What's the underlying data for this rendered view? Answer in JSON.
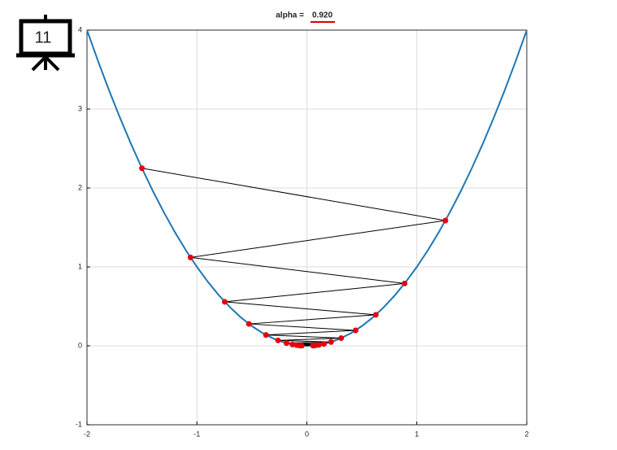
{
  "badge": "11",
  "chart_data": {
    "type": "line",
    "title": "alpha =",
    "title_value": "0.920",
    "xlim": [
      -2,
      2
    ],
    "ylim": [
      -1,
      4
    ],
    "xticks": [
      -2,
      -1,
      0,
      1,
      2
    ],
    "yticks": [
      -1,
      0,
      1,
      2,
      3,
      4
    ],
    "grid": true,
    "series": [
      {
        "color": "#1f77b4",
        "x": [
          -2,
          -1.9,
          -1.8,
          -1.7,
          -1.6,
          -1.5,
          -1.4,
          -1.3,
          -1.2,
          -1.1,
          -1,
          -0.9,
          -0.8,
          -0.7,
          -0.6,
          -0.5,
          -0.4,
          -0.3,
          -0.2,
          -0.1,
          0,
          0.1,
          0.2,
          0.3,
          0.4,
          0.5,
          0.6,
          0.7,
          0.8,
          0.9,
          1,
          1.1,
          1.2,
          1.3,
          1.4,
          1.5,
          1.6,
          1.7,
          1.8,
          1.9,
          2
        ],
        "values": [
          4,
          3.61,
          3.24,
          2.89,
          2.56,
          2.25,
          1.96,
          1.69,
          1.44,
          1.21,
          1,
          0.81,
          0.64,
          0.49,
          0.36,
          0.25,
          0.16,
          0.09,
          0.04,
          0.01,
          0,
          0.01,
          0.04,
          0.09,
          0.16,
          0.25,
          0.36,
          0.49,
          0.64,
          0.81,
          1,
          1.21,
          1.44,
          1.69,
          1.96,
          2.25,
          2.56,
          2.89,
          3.24,
          3.61,
          4
        ]
      },
      {
        "color": "#000000",
        "marker_color": "#e8000b",
        "x": [
          -1.5,
          1.26,
          -1.058,
          0.889,
          -0.747,
          0.627,
          -0.527,
          0.443,
          -0.372,
          0.312,
          -0.262,
          0.22,
          -0.185,
          0.155,
          -0.131,
          0.11,
          -0.092,
          0.077,
          -0.065,
          0.055,
          -0.046
        ],
        "values": [
          2.25,
          1.5876,
          1.1202,
          0.7904,
          0.5577,
          0.3935,
          0.2777,
          0.1959,
          0.1382,
          0.0975,
          0.0688,
          0.0486,
          0.0343,
          0.0242,
          0.0171,
          0.012,
          0.0085,
          0.006,
          0.0042,
          0.003,
          0.0021
        ]
      }
    ]
  }
}
